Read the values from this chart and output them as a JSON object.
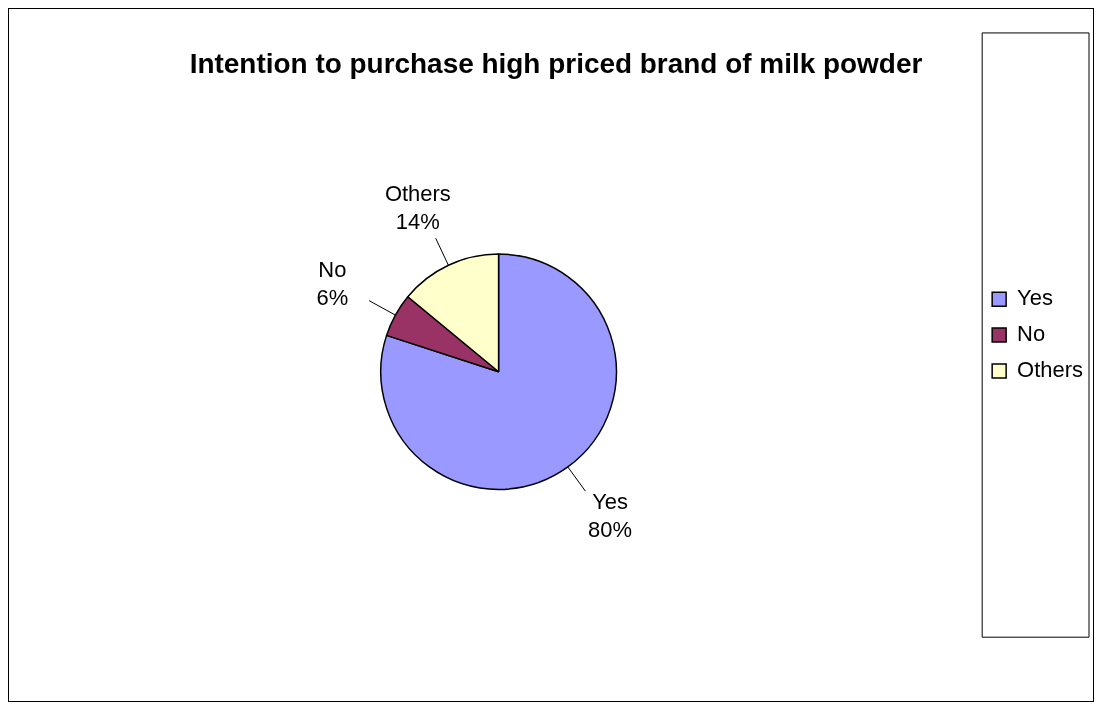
{
  "chart_data": {
    "type": "pie",
    "title": "Intention to purchase high priced brand of milk powder",
    "categories": [
      "Yes",
      "No",
      "Others"
    ],
    "values": [
      80,
      6,
      14
    ],
    "value_labels": [
      "80%",
      "6%",
      "14%"
    ],
    "colors": [
      "#9999ff",
      "#993366",
      "#ffffcc"
    ],
    "legend": "right"
  }
}
